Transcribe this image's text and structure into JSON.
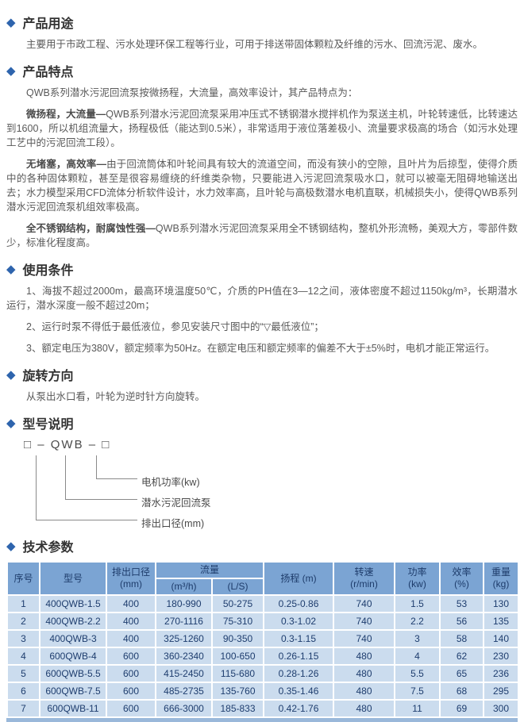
{
  "icons": {
    "diamond": "◆"
  },
  "usage": {
    "title": "产品用途",
    "body": "主要用于市政工程、污水处理环保工程等行业，可用于排送带固体颗粒及纤维的污水、回流污泥、废水。"
  },
  "features": {
    "title": "产品特点",
    "intro": "QWB系列潜水污泥回流泵按微扬程，大流量，高效率设计，其产品特点为：",
    "items": [
      {
        "lead": "微扬程，大流量—",
        "text": "QWB系列潜水污泥回流泵采用冲压式不锈钢潜水搅拌机作为泵送主机，叶轮转速低，比转速达到1600，所以机组流量大，扬程极低（能达到0.5米），非常适用于液位落差极小、流量要求极高的场合（如污水处理工艺中的污泥回流工段）。"
      },
      {
        "lead": "无堵塞，高效率—",
        "text": "由于回流筒体和叶轮间具有较大的流道空间，而没有狭小的空隙，且叶片为后掠型，使得介质中的各种固体颗粒，甚至是很容易缠绕的纤维类杂物，只要能进入污泥回流泵吸水口，就可以被毫无阻碍地输送出去；水力模型采用CFD流体分析软件设计，水力效率高，且叶轮与高极数潜水电机直联，机械损失小，使得QWB系列潜水污泥回流泵机组效率极高。"
      },
      {
        "lead": "全不锈钢结构，耐腐蚀性强—",
        "text": "QWB系列潜水污泥回流泵采用全不锈钢结构，整机外形流畅，美观大方，零部件数少，标准化程度高。"
      }
    ]
  },
  "conditions": {
    "title": "使用条件",
    "items": [
      "1、海拔不超过2000m，最高环境温度50℃，介质的PH值在3—12之间，液体密度不超过1150kg/m³，长期潜水运行，潜水深度一般不超过20m；",
      "2、运行时泵不得低于最低液位，参见安装尺寸图中的“▽最低液位”；",
      "3、额定电压为380V，额定频率为50Hz。在额定电压和额定频率的偏差不大于±5%时，电机才能正常运行。"
    ]
  },
  "rotation": {
    "title": "旋转方向",
    "body": "从泵出水口看，叶轮为逆时针方向旋转。"
  },
  "model": {
    "title": "型号说明",
    "formula": "□ – QWB – □",
    "labels": [
      "电机功率(kw)",
      "潜水污泥回流泵",
      "排出口径(mm)"
    ]
  },
  "specs": {
    "title": "技术参数",
    "headers": {
      "seq": "序号",
      "model": "型号",
      "outlet": "排出口径",
      "outlet_unit": "(mm)",
      "flow": "流量",
      "flow_m3h": "(m³/h)",
      "flow_ls": "(L/S)",
      "head": "扬程 (m)",
      "speed": "转速",
      "speed_unit": "(r/min)",
      "power": "功率",
      "power_unit": "(kw)",
      "eff": "效率",
      "eff_unit": "(%)",
      "weight": "重量",
      "weight_unit": "(kg)"
    },
    "rows": [
      [
        "1",
        "400QWB-1.5",
        "400",
        "180-990",
        "50-275",
        "0.25-0.86",
        "740",
        "1.5",
        "53",
        "130"
      ],
      [
        "2",
        "400QWB-2.2",
        "400",
        "270-1116",
        "75-310",
        "0.3-1.02",
        "740",
        "2.2",
        "56",
        "135"
      ],
      [
        "3",
        "400QWB-3",
        "400",
        "325-1260",
        "90-350",
        "0.3-1.15",
        "740",
        "3",
        "58",
        "140"
      ],
      [
        "4",
        "600QWB-4",
        "600",
        "360-2340",
        "100-650",
        "0.26-1.15",
        "480",
        "4",
        "62",
        "230"
      ],
      [
        "5",
        "600QWB-5.5",
        "600",
        "415-2450",
        "115-680",
        "0.28-1.26",
        "480",
        "5.5",
        "65",
        "236"
      ],
      [
        "6",
        "600QWB-7.5",
        "600",
        "485-2735",
        "135-760",
        "0.35-1.46",
        "480",
        "7.5",
        "68",
        "295"
      ],
      [
        "7",
        "600QWB-11",
        "600",
        "666-3000",
        "185-833",
        "0.42-1.76",
        "480",
        "11",
        "69",
        "300"
      ]
    ]
  }
}
